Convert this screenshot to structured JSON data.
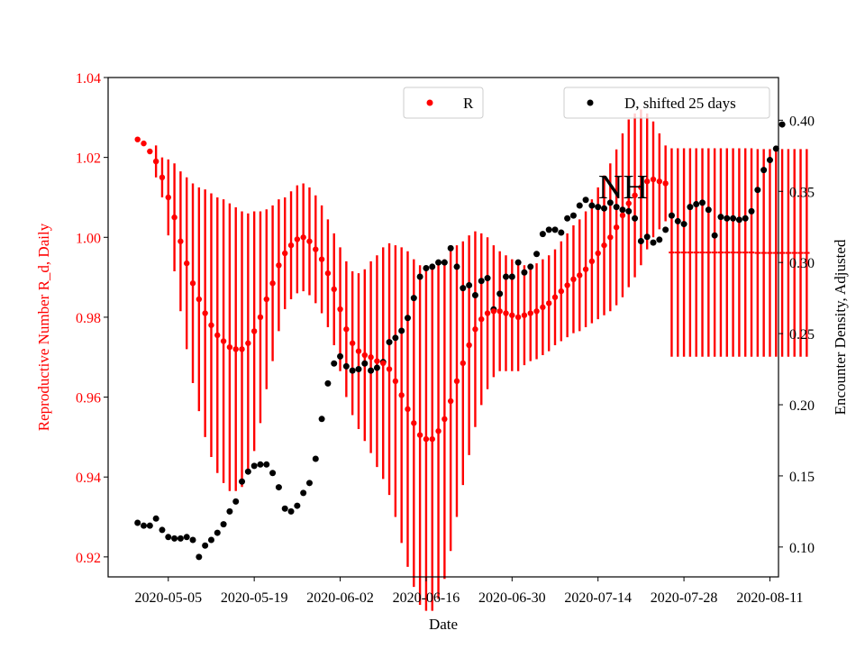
{
  "chart_data": {
    "type": "scatter",
    "title": "",
    "xlabel": "Date",
    "ylabel_left": "Reproductive Number R_d, Daily",
    "ylabel_right": "Encounter Density, Adjusted",
    "annotation": "NH",
    "x_start_date": "2020-04-28",
    "x_range_days": [
      -2.8,
      106.4
    ],
    "y_left_range": [
      0.915,
      1.04
    ],
    "y_right_range": [
      0.079,
      0.43
    ],
    "x_ticks": [
      "2020-05-05",
      "2020-05-19",
      "2020-06-02",
      "2020-06-16",
      "2020-06-30",
      "2020-07-14",
      "2020-07-28",
      "2020-08-11"
    ],
    "y_left_ticks": [
      "0.92",
      "0.94",
      "0.96",
      "0.98",
      "1.00",
      "1.02",
      "1.04"
    ],
    "y_right_ticks": [
      "0.10",
      "0.15",
      "0.20",
      "0.25",
      "0.30",
      "0.35",
      "0.40"
    ],
    "colors": {
      "r_series": "#ff0000",
      "d_series": "#000000",
      "axis": "#000000",
      "left_axis_text": "#ff0000"
    },
    "series": [
      {
        "name": "R",
        "axis": "left",
        "color": "#ff0000",
        "start_day": 2,
        "values": [
          1.0245,
          1.0235,
          1.0215,
          1.019,
          1.015,
          1.01,
          1.005,
          0.999,
          0.9935,
          0.9885,
          0.9845,
          0.981,
          0.978,
          0.9755,
          0.974,
          0.9725,
          0.972,
          0.972,
          0.9735,
          0.9765,
          0.98,
          0.9845,
          0.9885,
          0.993,
          0.996,
          0.998,
          0.9995,
          1.0,
          0.999,
          0.997,
          0.9945,
          0.991,
          0.987,
          0.982,
          0.977,
          0.9735,
          0.9715,
          0.9705,
          0.97,
          0.969,
          0.9685,
          0.967,
          0.964,
          0.9605,
          0.957,
          0.9535,
          0.9505,
          0.9495,
          0.9495,
          0.9515,
          0.9545,
          0.959,
          0.964,
          0.9685,
          0.973,
          0.977,
          0.9795,
          0.981,
          0.9815,
          0.9815,
          0.981,
          0.9805,
          0.98,
          0.9805,
          0.981,
          0.9815,
          0.9825,
          0.9835,
          0.985,
          0.9865,
          0.988,
          0.9895,
          0.9905,
          0.992,
          0.994,
          0.996,
          0.998,
          1.0,
          1.0025,
          1.0055,
          1.0085,
          1.0105,
          1.0125,
          1.014,
          1.0145,
          1.014,
          1.0135
        ],
        "errors": [
          0,
          0,
          0,
          0.004,
          0.005,
          0.0095,
          0.0135,
          0.0175,
          0.0215,
          0.025,
          0.028,
          0.031,
          0.033,
          0.0345,
          0.0355,
          0.036,
          0.0355,
          0.0345,
          0.0325,
          0.03,
          0.0265,
          0.0225,
          0.0195,
          0.0165,
          0.014,
          0.0135,
          0.0135,
          0.0135,
          0.0135,
          0.0135,
          0.0135,
          0.0135,
          0.014,
          0.0155,
          0.017,
          0.018,
          0.0195,
          0.0215,
          0.024,
          0.0265,
          0.029,
          0.0315,
          0.034,
          0.037,
          0.0395,
          0.041,
          0.0425,
          0.043,
          0.043,
          0.042,
          0.04,
          0.0375,
          0.034,
          0.0305,
          0.0275,
          0.0245,
          0.0215,
          0.019,
          0.0165,
          0.015,
          0.0145,
          0.014,
          0.0135,
          0.0125,
          0.012,
          0.012,
          0.012,
          0.012,
          0.012,
          0.0125,
          0.013,
          0.0135,
          0.014,
          0.0145,
          0.0155,
          0.0165,
          0.0175,
          0.0185,
          0.0195,
          0.0205,
          0.021,
          0.0205,
          0.0195,
          0.017,
          0.0145,
          0.012,
          0.0095
        ]
      },
      {
        "name": "R projection",
        "axis": "left",
        "color": "#ff0000",
        "start_day": 89,
        "values": [
          0.9962,
          0.9962,
          0.9962,
          0.9962,
          0.9962,
          0.9962,
          0.9962,
          0.9962,
          0.9962,
          0.9962,
          0.9962,
          0.9962,
          0.9962,
          0.9962,
          0.9961,
          0.9961,
          0.9961,
          0.9961,
          0.9961,
          0.9961,
          0.9961,
          0.9961,
          0.9961
        ],
        "errors": [
          0.0261,
          0.0261,
          0.0261,
          0.0261,
          0.0261,
          0.0261,
          0.0261,
          0.0261,
          0.0261,
          0.0261,
          0.0261,
          0.0261,
          0.0261,
          0.0261,
          0.026,
          0.026,
          0.026,
          0.026,
          0.026,
          0.026,
          0.026,
          0.026,
          0.026
        ]
      },
      {
        "name": "D, shifted 25 days",
        "axis": "right",
        "color": "#000000",
        "start_day": 2,
        "values": [
          0.117,
          0.115,
          0.115,
          0.12,
          0.112,
          0.107,
          0.106,
          0.106,
          0.107,
          0.105,
          0.093,
          0.101,
          0.105,
          0.11,
          0.116,
          0.125,
          0.132,
          0.146,
          0.153,
          0.157,
          0.158,
          0.158,
          0.152,
          0.142,
          0.127,
          0.125,
          0.129,
          0.138,
          0.145,
          0.162,
          0.19,
          0.215,
          0.229,
          0.234,
          0.227,
          0.224,
          0.225,
          0.229,
          0.224,
          0.226,
          0.23,
          0.244,
          0.247,
          0.252,
          0.261,
          0.275,
          0.29,
          0.296,
          0.297,
          0.3,
          0.3,
          0.31,
          0.297,
          0.282,
          0.284,
          0.277,
          0.287,
          0.289,
          0.267,
          0.278,
          0.29,
          0.29,
          0.3,
          0.293,
          0.297,
          0.306,
          0.32,
          0.323,
          0.323,
          0.321,
          0.331,
          0.333,
          0.34,
          0.344,
          0.34,
          0.339,
          0.338,
          0.342,
          0.339,
          0.337,
          0.336,
          0.331,
          0.315,
          0.318,
          0.314,
          0.316,
          0.323,
          0.333,
          0.329,
          0.327,
          0.339,
          0.341,
          0.342,
          0.337,
          0.319,
          0.332,
          0.331,
          0.331,
          0.33,
          0.331,
          0.336,
          0.351,
          0.365,
          0.372,
          0.38,
          0.397
        ]
      }
    ],
    "legend": [
      {
        "label": "R",
        "placement": "top-center"
      },
      {
        "label": "D, shifted 25 days",
        "placement": "top-right"
      }
    ]
  }
}
